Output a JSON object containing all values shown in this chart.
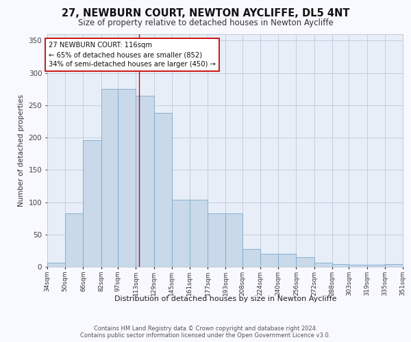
{
  "title1": "27, NEWBURN COURT, NEWTON AYCLIFFE, DL5 4NT",
  "title2": "Size of property relative to detached houses in Newton Aycliffe",
  "xlabel": "Distribution of detached houses by size in Newton Aycliffe",
  "ylabel": "Number of detached properties",
  "bar_values": [
    6,
    83,
    196,
    275,
    275,
    265,
    238,
    104,
    104,
    83,
    83,
    28,
    20,
    20,
    15,
    6,
    4,
    3,
    3,
    4
  ],
  "bin_labels": [
    "34sqm",
    "50sqm",
    "66sqm",
    "82sqm",
    "97sqm",
    "113sqm",
    "129sqm",
    "145sqm",
    "161sqm",
    "177sqm",
    "193sqm",
    "208sqm",
    "224sqm",
    "240sqm",
    "256sqm",
    "272sqm",
    "288sqm",
    "303sqm",
    "319sqm",
    "335sqm",
    "351sqm"
  ],
  "bar_color": "#c9d9ea",
  "bar_edge_color": "#7aaac8",
  "bin_edges": [
    34,
    50,
    66,
    82,
    97,
    113,
    129,
    145,
    161,
    177,
    193,
    208,
    224,
    240,
    256,
    272,
    288,
    303,
    319,
    335,
    351
  ],
  "vline_x": 116,
  "vline_color": "#cc0000",
  "annotation_text": "27 NEWBURN COURT: 116sqm\n← 65% of detached houses are smaller (852)\n34% of semi-detached houses are larger (450) →",
  "ylim": [
    0,
    360
  ],
  "yticks": [
    0,
    50,
    100,
    150,
    200,
    250,
    300,
    350
  ],
  "footer1": "Contains HM Land Registry data © Crown copyright and database right 2024.",
  "footer2": "Contains public sector information licensed under the Open Government Licence v3.0.",
  "plot_bg_color": "#e8eef8",
  "fig_bg_color": "#f8f8ff"
}
